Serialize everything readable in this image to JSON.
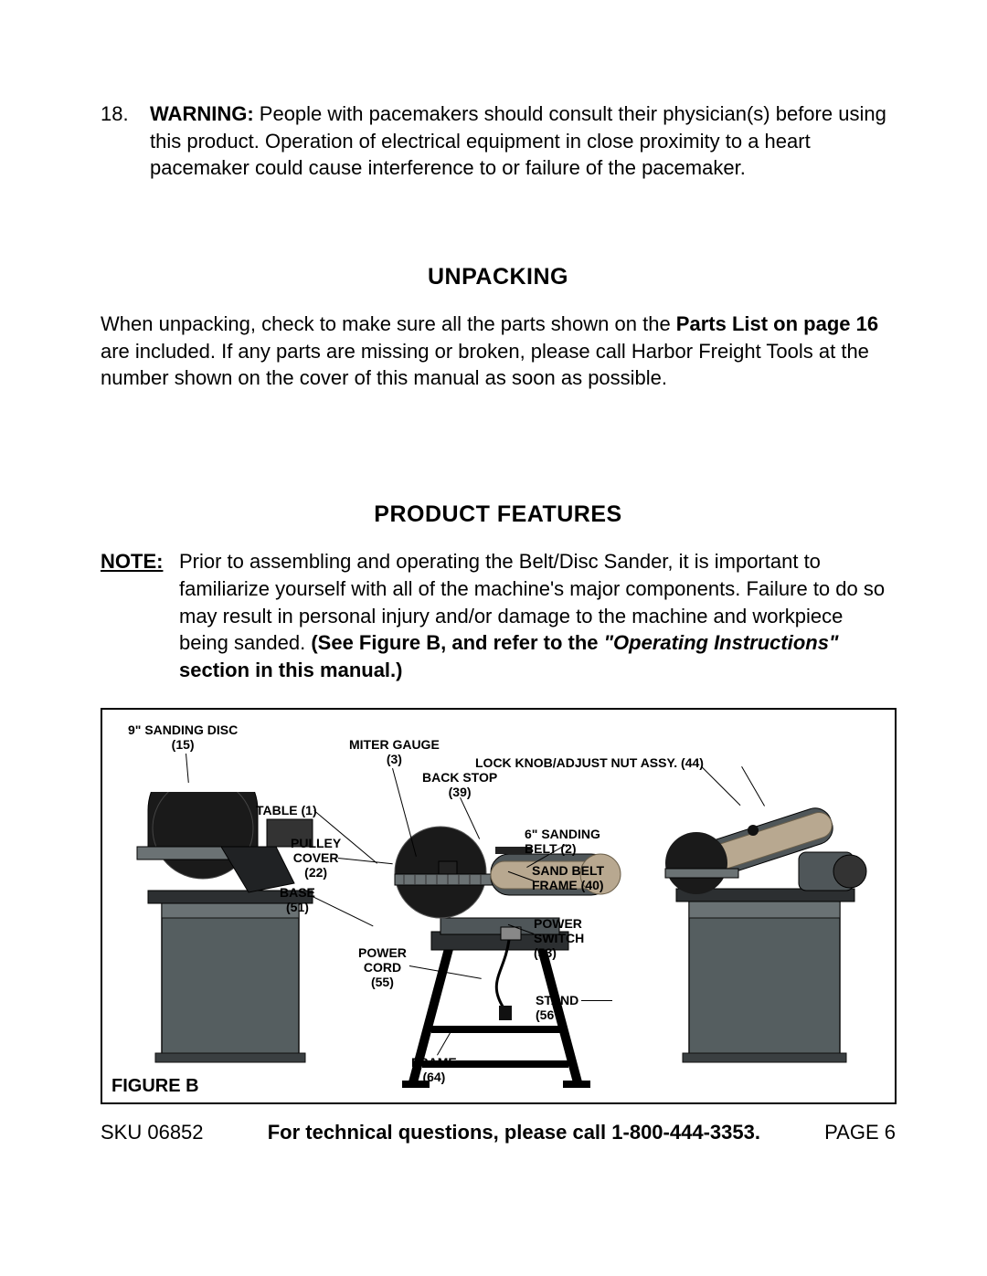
{
  "warning": {
    "num": "18.",
    "label": "WARNING:",
    "text": "People with pacemakers should consult their physician(s) before using this product.  Operation of electrical equipment in close proximity to a heart pacemaker could cause interference to or failure of the pacemaker."
  },
  "unpacking": {
    "heading": "UNPACKING",
    "pre": "When unpacking, check to make sure all the parts shown on the ",
    "bold": "Parts List on page 16",
    "post": " are included.  If any parts are missing or broken, please call Harbor Freight Tools at the number shown on the cover of this manual as soon as possible."
  },
  "features": {
    "heading": "PRODUCT FEATURES",
    "note_label": "NOTE:",
    "note_pre": "Prior to assembling and operating the Belt/Disc Sander, it is important to familiarize yourself with all of the machine's major components.  Failure to do so may result in personal injury and/or damage to the machine and workpiece being sanded.  ",
    "note_bold1": "(See Figure B, and refer to the ",
    "note_italic": "\"Operating Instructions\"",
    "note_bold2": " section in this manual.)"
  },
  "figure": {
    "label": "FIGURE B",
    "callouts": {
      "sanding_disc": "9\" SANDING DISC\n(15)",
      "miter_gauge": "MITER GAUGE\n(3)",
      "lock_knob": "LOCK KNOB/ADJUST NUT ASSY. (44)",
      "back_stop": "BACK STOP\n(39)",
      "table": "TABLE (1)",
      "pulley_cover": "PULLEY\nCOVER\n(22)",
      "base": "BASE\n(51)",
      "sanding_belt": "6\" SANDING\nBELT (2)",
      "sand_belt_frame": "SAND BELT\nFRAME (40)",
      "power_switch": "POWER\nSWITCH\n(53)",
      "power_cord": "POWER\nCORD\n(55)",
      "stand": "STAND\n(56",
      "frame": "FRAME\n(64)"
    }
  },
  "footer": {
    "sku": "SKU 06852",
    "center": "For technical questions, please call 1-800-444-3353.",
    "page": "PAGE 6"
  },
  "colors": {
    "machine_body": "#4f5659",
    "machine_dark": "#2c2f31",
    "belt": "#b8a890",
    "black": "#000000"
  }
}
